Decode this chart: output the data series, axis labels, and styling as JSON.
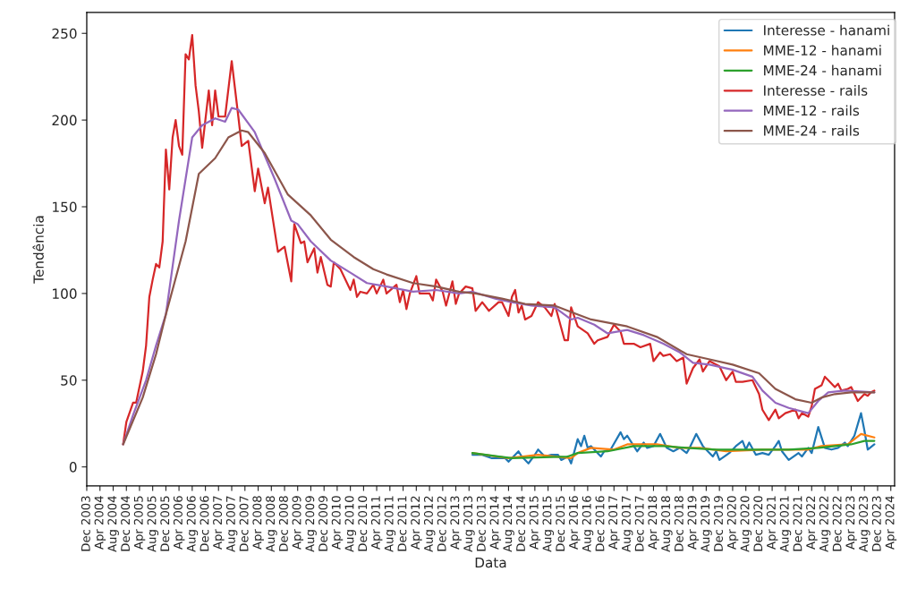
{
  "chart_data": {
    "type": "line",
    "xlabel": "Data",
    "ylabel": "Tendência",
    "xlim": [
      "2003-12-01",
      "2024-05-06"
    ],
    "ylim": [
      -11,
      262
    ],
    "yticks": [
      0,
      50,
      100,
      150,
      200,
      250
    ],
    "xticks": [
      {
        "value": "2003-12-01",
        "label": "Dec 2003"
      },
      {
        "value": "2004-04-01",
        "label": "Apr 2004"
      },
      {
        "value": "2004-08-01",
        "label": "Aug 2004"
      },
      {
        "value": "2004-12-01",
        "label": "Dec 2004"
      },
      {
        "value": "2005-04-01",
        "label": "Apr 2005"
      },
      {
        "value": "2005-08-01",
        "label": "Aug 2005"
      },
      {
        "value": "2005-12-01",
        "label": "Dec 2005"
      },
      {
        "value": "2006-04-01",
        "label": "Apr 2006"
      },
      {
        "value": "2006-08-01",
        "label": "Aug 2006"
      },
      {
        "value": "2006-12-01",
        "label": "Dec 2006"
      },
      {
        "value": "2007-04-01",
        "label": "Apr 2007"
      },
      {
        "value": "2007-08-01",
        "label": "Aug 2007"
      },
      {
        "value": "2007-12-01",
        "label": "Dec 2007"
      },
      {
        "value": "2008-04-01",
        "label": "Apr 2008"
      },
      {
        "value": "2008-08-01",
        "label": "Aug 2008"
      },
      {
        "value": "2008-12-01",
        "label": "Dec 2008"
      },
      {
        "value": "2009-04-01",
        "label": "Apr 2009"
      },
      {
        "value": "2009-08-01",
        "label": "Aug 2009"
      },
      {
        "value": "2009-12-01",
        "label": "Dec 2009"
      },
      {
        "value": "2010-04-01",
        "label": "Apr 2010"
      },
      {
        "value": "2010-08-01",
        "label": "Aug 2010"
      },
      {
        "value": "2010-12-01",
        "label": "Dec 2010"
      },
      {
        "value": "2011-04-01",
        "label": "Apr 2011"
      },
      {
        "value": "2011-08-01",
        "label": "Aug 2011"
      },
      {
        "value": "2011-12-01",
        "label": "Dec 2011"
      },
      {
        "value": "2012-04-01",
        "label": "Apr 2012"
      },
      {
        "value": "2012-08-01",
        "label": "Aug 2012"
      },
      {
        "value": "2012-12-01",
        "label": "Dec 2012"
      },
      {
        "value": "2013-04-01",
        "label": "Apr 2013"
      },
      {
        "value": "2013-08-01",
        "label": "Aug 2013"
      },
      {
        "value": "2013-12-01",
        "label": "Dec 2013"
      },
      {
        "value": "2014-04-01",
        "label": "Apr 2014"
      },
      {
        "value": "2014-08-01",
        "label": "Aug 2014"
      },
      {
        "value": "2014-12-01",
        "label": "Dec 2014"
      },
      {
        "value": "2015-04-01",
        "label": "Apr 2015"
      },
      {
        "value": "2015-08-01",
        "label": "Aug 2015"
      },
      {
        "value": "2015-12-01",
        "label": "Dec 2015"
      },
      {
        "value": "2016-04-01",
        "label": "Apr 2016"
      },
      {
        "value": "2016-08-01",
        "label": "Aug 2016"
      },
      {
        "value": "2016-12-01",
        "label": "Dec 2016"
      },
      {
        "value": "2017-04-01",
        "label": "Apr 2017"
      },
      {
        "value": "2017-08-01",
        "label": "Aug 2017"
      },
      {
        "value": "2017-12-01",
        "label": "Dec 2017"
      },
      {
        "value": "2018-04-01",
        "label": "Apr 2018"
      },
      {
        "value": "2018-08-01",
        "label": "Aug 2018"
      },
      {
        "value": "2018-12-01",
        "label": "Dec 2018"
      },
      {
        "value": "2019-04-01",
        "label": "Apr 2019"
      },
      {
        "value": "2019-08-01",
        "label": "Aug 2019"
      },
      {
        "value": "2019-12-01",
        "label": "Dec 2019"
      },
      {
        "value": "2020-04-01",
        "label": "Apr 2020"
      },
      {
        "value": "2020-08-01",
        "label": "Aug 2020"
      },
      {
        "value": "2020-12-01",
        "label": "Dec 2020"
      },
      {
        "value": "2021-04-01",
        "label": "Apr 2021"
      },
      {
        "value": "2021-08-01",
        "label": "Aug 2021"
      },
      {
        "value": "2021-12-01",
        "label": "Dec 2021"
      },
      {
        "value": "2022-04-01",
        "label": "Apr 2022"
      },
      {
        "value": "2022-08-01",
        "label": "Aug 2022"
      },
      {
        "value": "2022-12-01",
        "label": "Dec 2022"
      },
      {
        "value": "2023-04-01",
        "label": "Apr 2023"
      },
      {
        "value": "2023-08-01",
        "label": "Aug 2023"
      },
      {
        "value": "2023-12-01",
        "label": "Dec 2023"
      },
      {
        "value": "2024-04-01",
        "label": "Apr 2024"
      }
    ],
    "grid": false,
    "legend": "top right",
    "marker": "none",
    "line_style": "solid",
    "series": [
      {
        "name": "Interesse - hanami",
        "color": "#1f77b4",
        "x": [
          "2013-09",
          "2013-12",
          "2014-03",
          "2014-07",
          "2014-08",
          "2014-11",
          "2014-12",
          "2015-02",
          "2015-04",
          "2015-05",
          "2015-07",
          "2015-09",
          "2015-11",
          "2015-12",
          "2016-02",
          "2016-03",
          "2016-05",
          "2016-06",
          "2016-07",
          "2016-08",
          "2016-09",
          "2016-12",
          "2017-01",
          "2017-03",
          "2017-06",
          "2017-07",
          "2017-08",
          "2017-10",
          "2017-11",
          "2018-01",
          "2018-02",
          "2018-04",
          "2018-06",
          "2018-08",
          "2018-10",
          "2018-12",
          "2019-02",
          "2019-03",
          "2019-05",
          "2019-07",
          "2019-10",
          "2019-11",
          "2019-12",
          "2020-03",
          "2020-05",
          "2020-07",
          "2020-08",
          "2020-09",
          "2020-11",
          "2021-01",
          "2021-03",
          "2021-05",
          "2021-06",
          "2021-07",
          "2021-09",
          "2021-12",
          "2022-01",
          "2022-03",
          "2022-04",
          "2022-06",
          "2022-08",
          "2022-10",
          "2022-12",
          "2023-02",
          "2023-03",
          "2023-05",
          "2023-07",
          "2023-08",
          "2023-09",
          "2023-11"
        ],
        "values": [
          7,
          7,
          5,
          5,
          3,
          9,
          6,
          2,
          7,
          10,
          6,
          7,
          7,
          4,
          6,
          2,
          16,
          12,
          18,
          11,
          12,
          6,
          9,
          10,
          20,
          16,
          18,
          12,
          9,
          14,
          11,
          12,
          19,
          11,
          9,
          11,
          8,
          11,
          19,
          12,
          6,
          9,
          4,
          8,
          12,
          15,
          10,
          14,
          7,
          8,
          7,
          12,
          15,
          9,
          4,
          8,
          6,
          11,
          8,
          23,
          11,
          10,
          11,
          14,
          12,
          18,
          31,
          21,
          10,
          13
        ]
      },
      {
        "name": "MME-12 - hanami",
        "color": "#ff7f0e",
        "x": [
          "2013-09",
          "2014-08",
          "2015-05",
          "2016-03",
          "2016-05",
          "2016-09",
          "2017-04",
          "2017-08",
          "2018-05",
          "2018-12",
          "2019-06",
          "2020-02",
          "2021-01",
          "2022-03",
          "2022-07",
          "2023-03",
          "2023-07",
          "2023-11"
        ],
        "values": [
          8,
          5,
          7,
          5,
          8,
          11,
          10,
          13,
          13,
          11,
          11,
          9,
          10,
          10,
          12,
          13,
          19,
          17
        ]
      },
      {
        "name": "MME-24 - hanami",
        "color": "#2ca02c",
        "x": [
          "2013-09",
          "2014-09",
          "2016-02",
          "2016-05",
          "2017-02",
          "2017-10",
          "2018-07",
          "2019-02",
          "2019-11",
          "2020-08",
          "2021-09",
          "2022-06",
          "2022-11",
          "2023-04",
          "2023-08",
          "2023-11"
        ],
        "values": [
          8,
          5,
          6,
          8,
          9,
          12,
          12,
          11,
          10,
          10,
          10,
          11,
          12,
          13,
          15,
          15
        ]
      },
      {
        "name": "Interesse - rails",
        "color": "#d62728",
        "x": [
          "2004-11",
          "2004-12",
          "2005-02",
          "2005-03",
          "2005-05",
          "2005-06",
          "2005-07",
          "2005-08",
          "2005-09",
          "2005-10",
          "2005-11",
          "2005-12",
          "2006-01",
          "2006-02",
          "2006-03",
          "2006-04",
          "2006-05",
          "2006-06",
          "2006-07",
          "2006-08",
          "2006-09",
          "2006-10",
          "2006-11",
          "2007-01",
          "2007-02",
          "2007-03",
          "2007-04",
          "2007-06",
          "2007-08",
          "2007-10",
          "2007-11",
          "2008-01",
          "2008-03",
          "2008-04",
          "2008-06",
          "2008-07",
          "2008-10",
          "2008-12",
          "2009-02",
          "2009-03",
          "2009-05",
          "2009-06",
          "2009-07",
          "2009-09",
          "2009-10",
          "2009-11",
          "2010-01",
          "2010-02",
          "2010-03",
          "2010-05",
          "2010-08",
          "2010-09",
          "2010-10",
          "2010-11",
          "2011-01",
          "2011-03",
          "2011-04",
          "2011-06",
          "2011-07",
          "2011-10",
          "2011-11",
          "2011-12",
          "2012-01",
          "2012-02",
          "2012-04",
          "2012-05",
          "2012-08",
          "2012-09",
          "2012-10",
          "2012-12",
          "2013-01",
          "2013-03",
          "2013-04",
          "2013-05",
          "2013-07",
          "2013-09",
          "2013-10",
          "2013-12",
          "2014-02",
          "2014-05",
          "2014-06",
          "2014-08",
          "2014-09",
          "2014-10",
          "2014-11",
          "2014-12",
          "2015-01",
          "2015-03",
          "2015-05",
          "2015-07",
          "2015-09",
          "2015-10",
          "2016-01",
          "2016-02",
          "2016-03",
          "2016-05",
          "2016-08",
          "2016-10",
          "2016-11",
          "2017-02",
          "2017-04",
          "2017-06",
          "2017-07",
          "2017-10",
          "2017-12",
          "2018-03",
          "2018-04",
          "2018-06",
          "2018-07",
          "2018-09",
          "2018-11",
          "2019-01",
          "2019-02",
          "2019-04",
          "2019-06",
          "2019-07",
          "2019-09",
          "2019-12",
          "2020-02",
          "2020-04",
          "2020-05",
          "2020-07",
          "2020-10",
          "2020-12",
          "2021-01",
          "2021-03",
          "2021-05",
          "2021-06",
          "2021-08",
          "2021-11",
          "2021-12",
          "2022-01",
          "2022-03",
          "2022-04",
          "2022-05",
          "2022-07",
          "2022-08",
          "2022-09",
          "2022-11",
          "2022-12",
          "2023-01",
          "2023-03",
          "2023-04",
          "2023-06",
          "2023-08",
          "2023-09",
          "2023-10",
          "2023-11"
        ],
        "values": [
          13,
          26,
          37,
          37,
          55,
          70,
          98,
          108,
          117,
          115,
          130,
          183,
          160,
          190,
          200,
          185,
          180,
          238,
          235,
          249,
          220,
          205,
          184,
          217,
          197,
          217,
          202,
          202,
          234,
          202,
          185,
          188,
          159,
          172,
          152,
          161,
          124,
          127,
          107,
          140,
          129,
          130,
          118,
          126,
          112,
          121,
          105,
          104,
          118,
          114,
          102,
          108,
          98,
          101,
          100,
          105,
          100,
          108,
          100,
          105,
          95,
          102,
          91,
          100,
          110,
          100,
          100,
          96,
          108,
          101,
          93,
          107,
          94,
          100,
          104,
          103,
          90,
          95,
          90,
          95,
          95,
          87,
          98,
          102,
          89,
          93,
          85,
          87,
          95,
          92,
          87,
          94,
          73,
          73,
          92,
          81,
          77,
          71,
          73,
          75,
          82,
          78,
          71,
          71,
          69,
          71,
          61,
          66,
          64,
          65,
          61,
          63,
          48,
          57,
          62,
          55,
          61,
          58,
          50,
          55,
          49,
          49,
          50,
          42,
          33,
          27,
          33,
          28,
          31,
          33,
          28,
          31,
          29,
          35,
          45,
          47,
          52,
          50,
          46,
          48,
          44,
          45,
          46,
          38,
          42,
          41,
          43,
          44
        ]
      },
      {
        "name": "MME-12 - rails",
        "color": "#9467bd",
        "x": [
          "2004-11",
          "2005-02",
          "2005-06",
          "2005-09",
          "2005-12",
          "2006-04",
          "2006-08",
          "2006-11",
          "2007-03",
          "2007-06",
          "2007-08",
          "2007-10",
          "2008-03",
          "2008-09",
          "2009-02",
          "2009-04",
          "2009-08",
          "2010-02",
          "2010-08",
          "2011-01",
          "2011-07",
          "2012-03",
          "2012-10",
          "2013-05",
          "2013-09",
          "2014-04",
          "2014-09",
          "2015-03",
          "2015-10",
          "2016-03",
          "2016-05",
          "2016-10",
          "2017-02",
          "2017-08",
          "2018-01",
          "2018-07",
          "2018-12",
          "2019-04",
          "2019-09",
          "2020-04",
          "2020-10",
          "2021-01",
          "2021-05",
          "2021-09",
          "2022-03",
          "2022-06",
          "2022-09",
          "2023-02",
          "2023-11"
        ],
        "values": [
          13,
          30,
          50,
          70,
          88,
          142,
          190,
          197,
          201,
          199,
          207,
          206,
          193,
          166,
          142,
          140,
          130,
          119,
          112,
          106,
          104,
          101,
          102,
          100,
          101,
          97,
          95,
          93,
          92,
          85,
          86,
          82,
          77,
          79,
          76,
          71,
          66,
          60,
          59,
          56,
          52,
          44,
          37,
          34,
          31,
          38,
          43,
          44,
          43
        ]
      },
      {
        "name": "MME-24 - rails",
        "color": "#8c564b",
        "x": [
          "2004-11",
          "2005-05",
          "2005-09",
          "2005-12",
          "2006-06",
          "2006-10",
          "2007-03",
          "2007-07",
          "2007-11",
          "2008-01",
          "2008-06",
          "2009-01",
          "2009-08",
          "2010-02",
          "2010-09",
          "2011-03",
          "2011-07",
          "2012-03",
          "2012-10",
          "2013-05",
          "2013-10",
          "2014-06",
          "2015-01",
          "2015-10",
          "2016-02",
          "2016-09",
          "2017-08",
          "2018-05",
          "2019-02",
          "2019-09",
          "2020-04",
          "2020-12",
          "2021-05",
          "2021-11",
          "2022-04",
          "2022-07",
          "2022-11",
          "2023-04",
          "2023-11"
        ],
        "values": [
          13,
          40,
          65,
          88,
          130,
          169,
          178,
          190,
          194,
          193,
          181,
          157,
          145,
          131,
          121,
          114,
          111,
          106,
          104,
          101,
          100,
          97,
          94,
          93,
          90,
          85,
          81,
          75,
          65,
          62,
          59,
          54,
          45,
          39,
          37,
          40,
          42,
          43,
          43
        ]
      }
    ]
  }
}
